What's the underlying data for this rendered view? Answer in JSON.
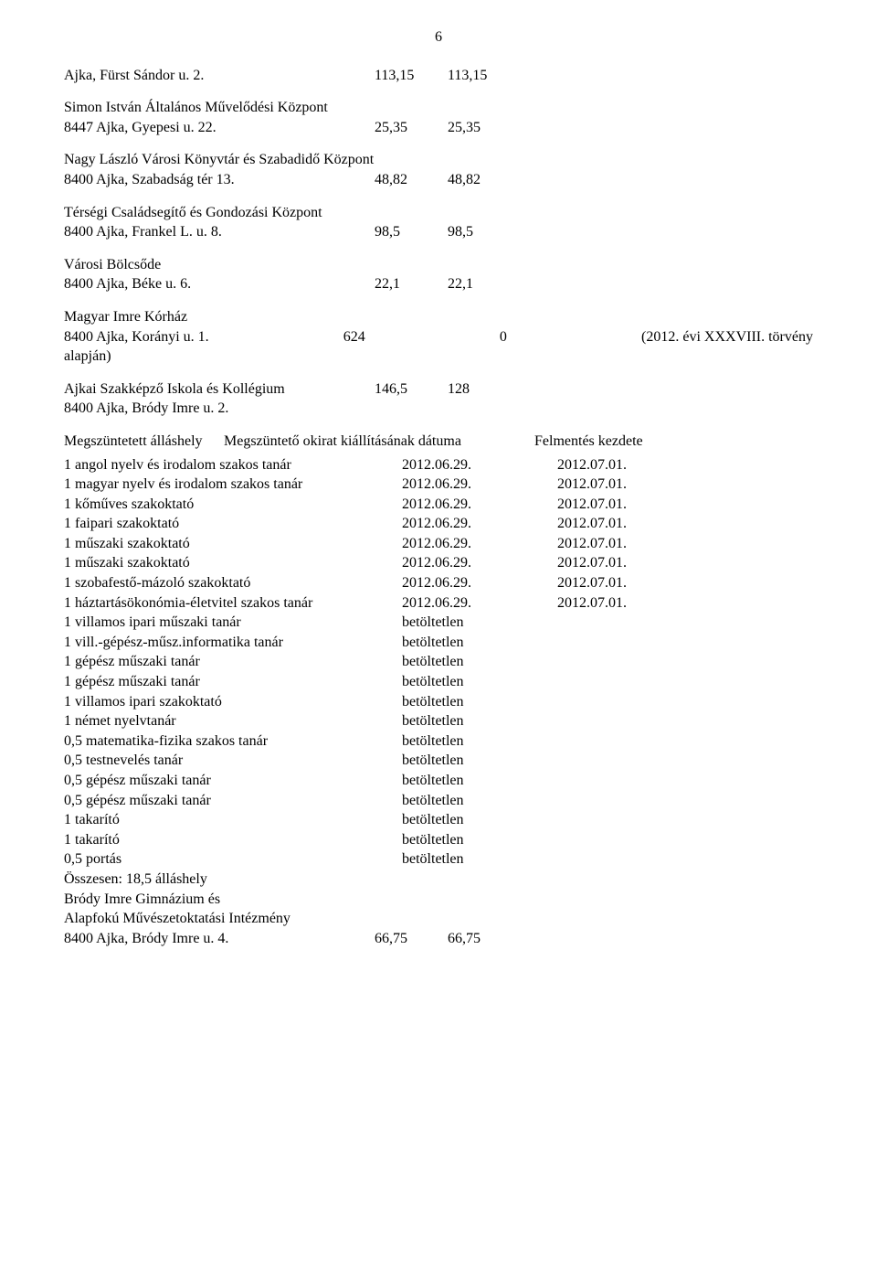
{
  "page_number": "6",
  "entries": [
    {
      "name": "Ajka, Fürst Sándor u. 2.",
      "v1": "113,15",
      "v2": "113,15"
    },
    {
      "name": "Simon István Általános Művelődési Központ",
      "addr": "8447 Ajka, Gyepesi u. 22.",
      "v1": "25,35",
      "v2": "25,35"
    },
    {
      "name": "Nagy László Városi Könyvtár és Szabadidő Központ",
      "addr": "8400 Ajka, Szabadság tér 13.",
      "v1": "48,82",
      "v2": "48,82"
    },
    {
      "name": "Térségi Családsegítő és Gondozási Központ",
      "addr": "8400 Ajka, Frankel L. u. 8.",
      "v1": "98,5",
      "v2": "98,5"
    },
    {
      "name": "Városi Bölcsőde",
      "addr": "8400 Ajka, Béke u. 6.",
      "v1": "22,1",
      "v2": "22,1"
    },
    {
      "name": "Magyar Imre Kórház",
      "addr": "8400 Ajka, Korányi u. 1.",
      "v1": "624",
      "v2": "0",
      "extra": "(2012. évi XXXVIII. törvény",
      "extra2": "alapján)"
    },
    {
      "name": "Ajkai Szakképző Iskola és Kollégium",
      "addr": "8400 Ajka, Bródy Imre u. 2.",
      "v1": "146,5",
      "v2": "128",
      "addr_below": true
    }
  ],
  "table_header": {
    "c1": "Megszüntetett álláshely",
    "c2": "Megszüntető okirat kiállításának dátuma",
    "c3": "Felmentés kezdete"
  },
  "rows": [
    {
      "c1": "1 angol nyelv és irodalom szakos tanár",
      "c2": "2012.06.29.",
      "c3": "2012.07.01."
    },
    {
      "c1": "1 magyar nyelv és irodalom szakos tanár",
      "c2": "2012.06.29.",
      "c3": "2012.07.01."
    },
    {
      "c1": "1 kőműves szakoktató",
      "c2": "2012.06.29.",
      "c3": "2012.07.01."
    },
    {
      "c1": "1 faipari szakoktató",
      "c2": "2012.06.29.",
      "c3": "2012.07.01."
    },
    {
      "c1": "1 műszaki szakoktató",
      "c2": "2012.06.29.",
      "c3": "2012.07.01."
    },
    {
      "c1": "1 műszaki szakoktató",
      "c2": "2012.06.29.",
      "c3": "2012.07.01."
    },
    {
      "c1": "1 szobafestő-mázoló szakoktató",
      "c2": "2012.06.29.",
      "c3": "2012.07.01."
    },
    {
      "c1": "1 háztartásökonómia-életvitel szakos tanár",
      "c2": "2012.06.29.",
      "c3": "2012.07.01."
    },
    {
      "c1": "1 villamos ipari műszaki tanár",
      "c2": "betöltetlen",
      "c3": ""
    },
    {
      "c1": "1 vill.-gépész-műsz.informatika tanár",
      "c2": "betöltetlen",
      "c3": ""
    },
    {
      "c1": "1 gépész műszaki tanár",
      "c2": "betöltetlen",
      "c3": ""
    },
    {
      "c1": "1 gépész műszaki tanár",
      "c2": "betöltetlen",
      "c3": ""
    },
    {
      "c1": "1 villamos ipari szakoktató",
      "c2": "betöltetlen",
      "c3": ""
    },
    {
      "c1": "1 német nyelvtanár",
      "c2": "betöltetlen",
      "c3": ""
    },
    {
      "c1": "0,5 matematika-fizika szakos tanár",
      "c2": "betöltetlen",
      "c3": ""
    },
    {
      "c1": "0,5 testnevelés tanár",
      "c2": "betöltetlen",
      "c3": ""
    },
    {
      "c1": "0,5 gépész műszaki tanár",
      "c2": "betöltetlen",
      "c3": ""
    },
    {
      "c1": "0,5 gépész műszaki tanár",
      "c2": "betöltetlen",
      "c3": ""
    },
    {
      "c1": "1 takarító",
      "c2": "betöltetlen",
      "c3": ""
    },
    {
      "c1": "1 takarító",
      "c2": "betöltetlen",
      "c3": ""
    },
    {
      "c1": "0,5 portás",
      "c2": "betöltetlen",
      "c3": ""
    }
  ],
  "summary": "Összesen: 18,5 álláshely",
  "last_entry": {
    "name1": "Bródy Imre Gimnázium és",
    "name2": "Alapfokú Művészetoktatási Intézmény",
    "addr": "8400 Ajka, Bródy Imre u. 4.",
    "v1": "66,75",
    "v2": "66,75"
  }
}
